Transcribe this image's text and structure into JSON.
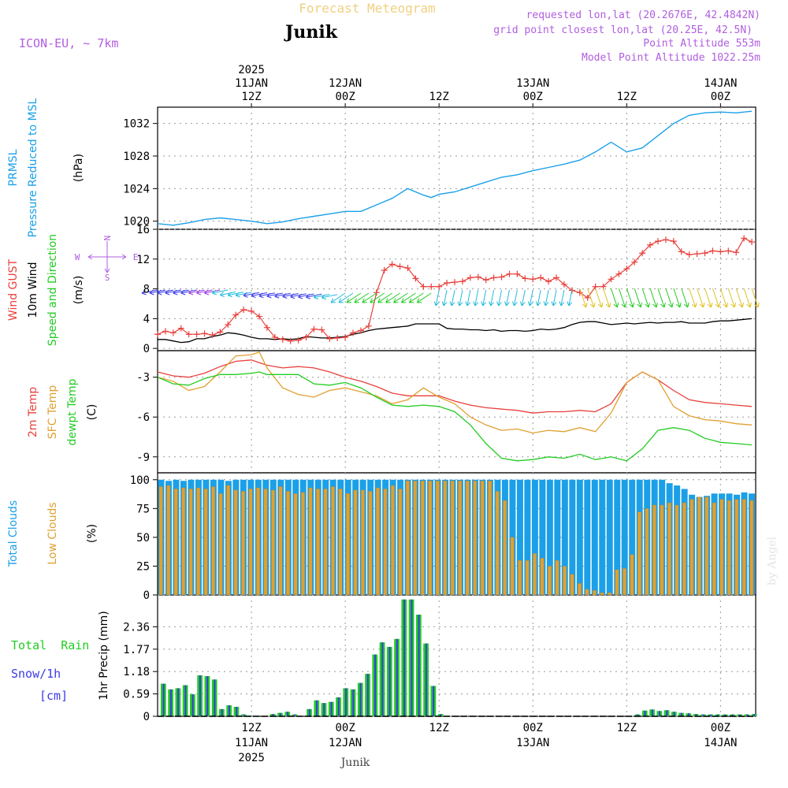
{
  "header": {
    "title": "Forecast Meteogram",
    "location": "Junik",
    "model": "ICON-EU, ~ 7km",
    "requested": "requested lon,lat (20.2676E, 42.4842N)",
    "grid_point": "grid point closest lon,lat (20.25E, 42.5N)",
    "point_altitude": "Point Altitude 553m",
    "model_altitude": "Model Point Altitude 1022.25m"
  },
  "footer": {
    "location": "Junik",
    "credit": "by Angel"
  },
  "colors": {
    "blue": "#1ba0e8",
    "red": "#e8403c",
    "green": "#22cc22",
    "orange": "#e0a030",
    "violet": "#b05ee0",
    "black": "#000000",
    "grey_frame": "#000000"
  },
  "time_axis": {
    "top": [
      {
        "hour": 12,
        "lines": [
          "2025",
          "11JAN",
          "12Z"
        ]
      },
      {
        "hour": 24,
        "lines": [
          "12JAN",
          "00Z"
        ]
      },
      {
        "hour": 36,
        "lines": [
          "12Z"
        ]
      },
      {
        "hour": 48,
        "lines": [
          "13JAN",
          "00Z"
        ]
      },
      {
        "hour": 60,
        "lines": [
          "12Z"
        ]
      },
      {
        "hour": 72,
        "lines": [
          "14JAN",
          "00Z"
        ]
      }
    ],
    "bottom": [
      {
        "hour": 12,
        "lines": [
          "12Z",
          "11JAN",
          "2025"
        ]
      },
      {
        "hour": 24,
        "lines": [
          "00Z",
          "12JAN"
        ]
      },
      {
        "hour": 36,
        "lines": [
          "12Z"
        ]
      },
      {
        "hour": 48,
        "lines": [
          "00Z",
          "13JAN"
        ]
      },
      {
        "hour": 60,
        "lines": [
          "12Z"
        ]
      },
      {
        "hour": 72,
        "lines": [
          "00Z",
          "14JAN"
        ]
      }
    ]
  },
  "panels": {
    "pressure": {
      "labels": [
        {
          "text": "PRMSL",
          "color": "#1ba0e8"
        },
        {
          "text": "Pressure Reduced to MSL",
          "color": "#1ba0e8"
        },
        {
          "text": "(hPa)",
          "color": "#000000"
        }
      ],
      "ticks": [
        "1020",
        "1024",
        "1028",
        "1032"
      ]
    },
    "wind": {
      "labels": [
        {
          "text": "Wind GUST",
          "color": "#e8403c"
        },
        {
          "text": "10m Wind",
          "color": "#000000"
        },
        {
          "text": "Speed and Direction",
          "color": "#22cc22"
        },
        {
          "text": "(m/s)",
          "color": "#000000"
        }
      ],
      "ticks": [
        "0",
        "4",
        "8",
        "12",
        "16"
      ],
      "compass": {
        "n": "N",
        "s": "S",
        "w": "W",
        "e": "E"
      }
    },
    "temperature": {
      "labels": [
        {
          "text": "2m Temp",
          "color": "#e8403c"
        },
        {
          "text": "SFC Temp",
          "color": "#e0a030"
        },
        {
          "text": "dewpt Temp",
          "color": "#22cc22"
        },
        {
          "text": "(C)",
          "color": "#000000"
        }
      ],
      "ticks": [
        "-9",
        "-6",
        "-3"
      ]
    },
    "clouds": {
      "labels": [
        {
          "text": "Total Clouds",
          "color": "#1ba0e8"
        },
        {
          "text": "Low Clouds",
          "color": "#e0a030"
        },
        {
          "text": "(%)",
          "color": "#000000"
        }
      ],
      "ticks": [
        "0",
        "25",
        "50",
        "75",
        "100"
      ]
    },
    "precip": {
      "legend": [
        {
          "text": "Total  Rain",
          "color": "#22cc22"
        },
        {
          "text": "Snow/1h",
          "color": "#3b3be8"
        },
        {
          "text": "[cm]",
          "color": "#3b3be8"
        }
      ],
      "ylabel": "1hr Precip (mm)",
      "ticks": [
        "0",
        "0.59",
        "1.18",
        "1.77",
        "2.36"
      ]
    }
  },
  "chart_data": [
    {
      "type": "line",
      "name": "PRMSL",
      "ylabel": "(hPa)",
      "ylim": [
        1019,
        1034
      ],
      "x_hours": [
        0,
        2,
        4,
        6,
        8,
        10,
        12,
        14,
        16,
        18,
        20,
        22,
        24,
        26,
        28,
        30,
        32,
        34,
        35,
        36,
        38,
        40,
        42,
        44,
        46,
        48,
        50,
        52,
        54,
        56,
        58,
        60,
        62,
        64,
        66,
        68,
        70,
        72,
        74,
        76
      ],
      "values": [
        1019.7,
        1019.5,
        1019.8,
        1020.2,
        1020.4,
        1020.2,
        1020.0,
        1019.7,
        1019.9,
        1020.3,
        1020.6,
        1020.9,
        1021.2,
        1021.2,
        1022.0,
        1022.8,
        1024.0,
        1023.2,
        1022.9,
        1023.3,
        1023.6,
        1024.2,
        1024.8,
        1025.4,
        1025.7,
        1026.2,
        1026.6,
        1027.0,
        1027.5,
        1028.5,
        1029.7,
        1028.5,
        1029.0,
        1030.5,
        1032.0,
        1033.0,
        1033.3,
        1033.4,
        1033.3,
        1033.5
      ]
    },
    {
      "type": "line",
      "name": "Wind GUST / 10m Wind",
      "ylabel": "(m/s)",
      "ylim": [
        -0.3,
        16
      ],
      "x_hours": [
        0,
        1,
        2,
        3,
        4,
        5,
        6,
        7,
        8,
        9,
        10,
        11,
        12,
        13,
        14,
        15,
        16,
        17,
        18,
        19,
        20,
        21,
        22,
        23,
        24,
        25,
        26,
        27,
        28,
        29,
        30,
        31,
        32,
        33,
        34,
        35,
        36,
        37,
        38,
        39,
        40,
        41,
        42,
        43,
        44,
        45,
        46,
        47,
        48,
        49,
        50,
        51,
        52,
        53,
        54,
        55,
        56,
        57,
        58,
        59,
        60,
        61,
        62,
        63,
        64,
        65,
        66,
        67,
        68,
        69,
        70,
        71,
        72,
        73,
        74,
        75,
        76
      ],
      "series": [
        {
          "name": "Wind GUST",
          "values": [
            1.9,
            2.3,
            2.1,
            2.7,
            1.9,
            1.9,
            2.0,
            1.8,
            2.2,
            3.2,
            4.5,
            5.2,
            5.0,
            4.3,
            2.8,
            1.5,
            1.2,
            1.0,
            1.1,
            1.5,
            2.6,
            2.5,
            1.3,
            1.4,
            1.5,
            2.1,
            2.4,
            3.0,
            7.5,
            10.5,
            11.3,
            11.0,
            10.8,
            9.4,
            8.3,
            8.3,
            8.3,
            8.8,
            8.9,
            9.0,
            9.5,
            9.6,
            9.2,
            9.5,
            9.6,
            10.0,
            10.0,
            9.4,
            9.3,
            9.5,
            9.0,
            9.5,
            8.6,
            7.8,
            7.5,
            6.8,
            8.3,
            8.3,
            9.3,
            10.0,
            10.7,
            11.6,
            12.8,
            13.9,
            14.4,
            14.6,
            14.4,
            13.0,
            12.6,
            12.7,
            12.8,
            13.1,
            13.0,
            13.1,
            12.9,
            14.8,
            14.3
          ]
        },
        {
          "name": "10m Wind",
          "values": [
            1.2,
            1.2,
            1.0,
            0.8,
            0.9,
            1.3,
            1.3,
            1.6,
            1.8,
            2.1,
            2.0,
            1.8,
            1.5,
            1.3,
            1.3,
            1.2,
            1.3,
            1.2,
            1.3,
            1.6,
            1.5,
            1.4,
            1.4,
            1.5,
            1.6,
            1.9,
            2.1,
            2.4,
            2.6,
            2.7,
            2.8,
            2.9,
            3.0,
            3.3,
            3.3,
            3.3,
            3.3,
            2.7,
            2.6,
            2.6,
            2.5,
            2.5,
            2.4,
            2.5,
            2.3,
            2.4,
            2.4,
            2.3,
            2.4,
            2.6,
            2.5,
            2.6,
            2.8,
            3.2,
            3.5,
            3.6,
            3.6,
            3.4,
            3.2,
            3.3,
            3.4,
            3.3,
            3.4,
            3.5,
            3.4,
            3.5,
            3.5,
            3.6,
            3.4,
            3.4,
            3.4,
            3.6,
            3.7,
            3.7,
            3.8,
            3.9,
            4.0
          ]
        }
      ],
      "barb_every_hours": 1
    },
    {
      "type": "line",
      "name": "Temperatures",
      "ylabel": "(C)",
      "ylim": [
        -10.2,
        -1.0
      ],
      "x_hours": [
        0,
        2,
        4,
        6,
        8,
        10,
        12,
        13,
        14,
        16,
        18,
        20,
        22,
        24,
        26,
        28,
        30,
        32,
        34,
        36,
        38,
        40,
        42,
        44,
        46,
        48,
        50,
        52,
        54,
        56,
        58,
        60,
        62,
        64,
        66,
        68,
        70,
        72,
        74,
        76
      ],
      "series": [
        {
          "name": "2m Temp",
          "values": [
            -2.6,
            -2.9,
            -3.0,
            -2.7,
            -2.2,
            -1.8,
            -1.7,
            -1.9,
            -2.1,
            -2.3,
            -2.2,
            -2.3,
            -2.6,
            -3.0,
            -3.3,
            -3.7,
            -4.2,
            -4.4,
            -4.4,
            -4.4,
            -4.8,
            -5.1,
            -5.3,
            -5.4,
            -5.5,
            -5.7,
            -5.6,
            -5.6,
            -5.5,
            -5.6,
            -5.0,
            -3.4,
            -2.6,
            -3.2,
            -4.0,
            -4.7,
            -4.9,
            -5.0,
            -5.1,
            -5.2
          ]
        },
        {
          "name": "SFC Temp",
          "values": [
            -3.0,
            -3.3,
            -4.0,
            -3.7,
            -2.6,
            -1.4,
            -1.3,
            -1.1,
            -2.3,
            -3.8,
            -4.3,
            -4.5,
            -4.0,
            -3.8,
            -4.1,
            -4.4,
            -5.0,
            -4.7,
            -3.8,
            -4.5,
            -5.0,
            -6.0,
            -6.6,
            -7.0,
            -6.9,
            -7.2,
            -7.0,
            -7.1,
            -6.8,
            -7.1,
            -5.7,
            -3.4,
            -2.6,
            -3.2,
            -5.2,
            -5.9,
            -6.2,
            -6.3,
            -6.5,
            -6.6
          ]
        },
        {
          "name": "dewpt Temp",
          "values": [
            -3.0,
            -3.5,
            -3.6,
            -3.1,
            -2.8,
            -2.8,
            -2.7,
            -2.6,
            -2.8,
            -2.8,
            -2.8,
            -3.5,
            -3.6,
            -3.4,
            -3.8,
            -4.5,
            -5.1,
            -5.2,
            -5.1,
            -5.2,
            -5.6,
            -6.6,
            -8.0,
            -9.1,
            -9.3,
            -9.2,
            -9.0,
            -9.1,
            -8.8,
            -9.2,
            -9.0,
            -9.3,
            -8.4,
            -7.0,
            -6.8,
            -7.0,
            -7.6,
            -7.9,
            -8.0,
            -8.1
          ]
        }
      ]
    },
    {
      "type": "bar",
      "name": "Clouds",
      "ylabel": "(%)",
      "ylim": [
        0,
        106
      ],
      "x_hours_start": 0,
      "x_hours_step": 1,
      "series": [
        {
          "name": "Total Clouds",
          "values": [
            100,
            99,
            100,
            99,
            100,
            100,
            100,
            100,
            100,
            99,
            100,
            100,
            100,
            100,
            100,
            100,
            100,
            100,
            100,
            100,
            100,
            100,
            100,
            100,
            100,
            100,
            100,
            100,
            100,
            100,
            100,
            100,
            100,
            100,
            100,
            100,
            100,
            100,
            100,
            100,
            100,
            100,
            100,
            100,
            100,
            100,
            100,
            100,
            100,
            100,
            100,
            100,
            100,
            100,
            100,
            100,
            100,
            100,
            100,
            100,
            100,
            100,
            100,
            100,
            100,
            100,
            100,
            100,
            97,
            95,
            92,
            87,
            85,
            86,
            88,
            88,
            88,
            87,
            89,
            88
          ]
        },
        {
          "name": "Low Clouds",
          "values": [
            94,
            95,
            92,
            93,
            92,
            93,
            92,
            94,
            88,
            95,
            91,
            90,
            92,
            93,
            92,
            91,
            94,
            90,
            88,
            89,
            93,
            92,
            92,
            94,
            92,
            88,
            91,
            91,
            90,
            93,
            92,
            95,
            92,
            99,
            99,
            99,
            99,
            99,
            99,
            99,
            99,
            99,
            99,
            99,
            99,
            90,
            82,
            50,
            30,
            30,
            36,
            32,
            25,
            30,
            25,
            18,
            10,
            5,
            4,
            2,
            2,
            22,
            23,
            35,
            72,
            75,
            78,
            78,
            80,
            78,
            80,
            83,
            85,
            85,
            80,
            83,
            82,
            83,
            83,
            82
          ]
        }
      ]
    },
    {
      "type": "bar",
      "name": "1hr Precip",
      "ylabel": "1hr Precip (mm)",
      "ylim": [
        0,
        3.2
      ],
      "x_hours_start": 0,
      "x_hours_step": 1,
      "values": [
        0.86,
        0.71,
        0.74,
        0.82,
        0.58,
        1.08,
        1.06,
        0.97,
        0.19,
        0.29,
        0.25,
        0.05,
        0.02,
        0,
        0,
        0.06,
        0.09,
        0.12,
        0.05,
        0,
        0.19,
        0.42,
        0.35,
        0.38,
        0.5,
        0.74,
        0.71,
        0.88,
        1.12,
        1.63,
        1.95,
        1.83,
        2.04,
        3.08,
        3.08,
        2.68,
        1.92,
        0.8,
        0.06,
        0,
        0,
        0,
        0,
        0,
        0,
        0,
        0,
        0,
        0,
        0,
        0,
        0,
        0,
        0,
        0,
        0,
        0,
        0,
        0,
        0,
        0,
        0,
        0,
        0,
        0,
        0.05,
        0.15,
        0.18,
        0.14,
        0.16,
        0.12,
        0.09,
        0.08,
        0.06,
        0.05,
        0.05,
        0.05,
        0.05,
        0.05,
        0.05,
        0.05,
        0.06
      ]
    }
  ]
}
